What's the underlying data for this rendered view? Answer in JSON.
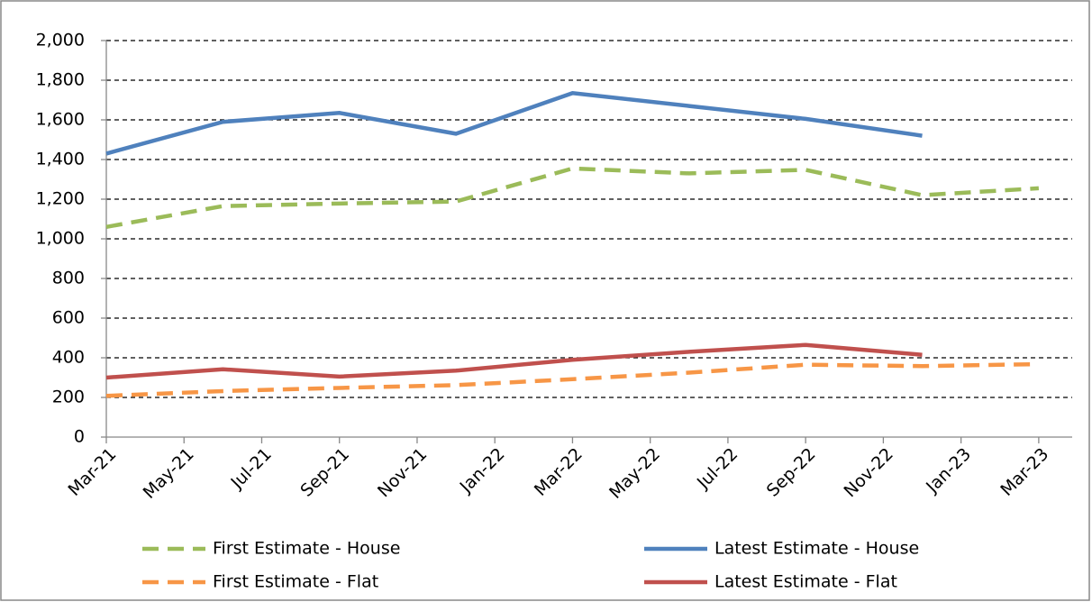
{
  "chart_data": {
    "type": "line",
    "x": [
      "2021-03",
      "2021-06",
      "2021-09",
      "2021-12",
      "2022-03",
      "2022-06",
      "2022-09",
      "2022-12",
      "2023-03"
    ],
    "series": [
      {
        "name": "First Estimate - House",
        "color": "#9bbb59",
        "style": "dashed",
        "values": [
          1060,
          1165,
          1178,
          1188,
          1355,
          1330,
          1348,
          1220,
          1255
        ]
      },
      {
        "name": "Latest Estimate - House",
        "color": "#4f81bd",
        "style": "solid",
        "values": [
          1430,
          1590,
          1635,
          1530,
          1735,
          1670,
          1605,
          1520,
          null
        ]
      },
      {
        "name": "First Estimate - Flat",
        "color": "#f79646",
        "style": "dashed",
        "values": [
          208,
          232,
          248,
          262,
          292,
          325,
          365,
          358,
          368
        ]
      },
      {
        "name": "Latest Estimate - Flat",
        "color": "#c0504d",
        "style": "solid",
        "values": [
          300,
          342,
          305,
          335,
          390,
          430,
          465,
          415,
          null
        ]
      }
    ],
    "xlim": [
      "2021-03",
      "2023-04"
    ],
    "xticks": [
      {
        "value": "2021-03",
        "label": "Mar-21"
      },
      {
        "value": "2021-05",
        "label": "May-21"
      },
      {
        "value": "2021-07",
        "label": "Jul-21"
      },
      {
        "value": "2021-09",
        "label": "Sep-21"
      },
      {
        "value": "2021-11",
        "label": "Nov-21"
      },
      {
        "value": "2022-01",
        "label": "Jan-22"
      },
      {
        "value": "2022-03",
        "label": "Mar-22"
      },
      {
        "value": "2022-05",
        "label": "May-22"
      },
      {
        "value": "2022-07",
        "label": "Jul-22"
      },
      {
        "value": "2022-09",
        "label": "Sep-22"
      },
      {
        "value": "2022-11",
        "label": "Nov-22"
      },
      {
        "value": "2023-01",
        "label": "Jan-23"
      },
      {
        "value": "2023-03",
        "label": "Mar-23"
      }
    ],
    "ylim": [
      0,
      2000
    ],
    "yticks": [
      0,
      200,
      400,
      600,
      800,
      {
        "value": 1000,
        "label": "1,000"
      },
      {
        "value": 1200,
        "label": "1,200"
      },
      {
        "value": 1400,
        "label": "1,400"
      },
      {
        "value": 1600,
        "label": "1,600"
      },
      {
        "value": 1800,
        "label": "1,800"
      },
      {
        "value": 2000,
        "label": "2,000"
      }
    ],
    "grid": true,
    "legend": "bottom"
  }
}
